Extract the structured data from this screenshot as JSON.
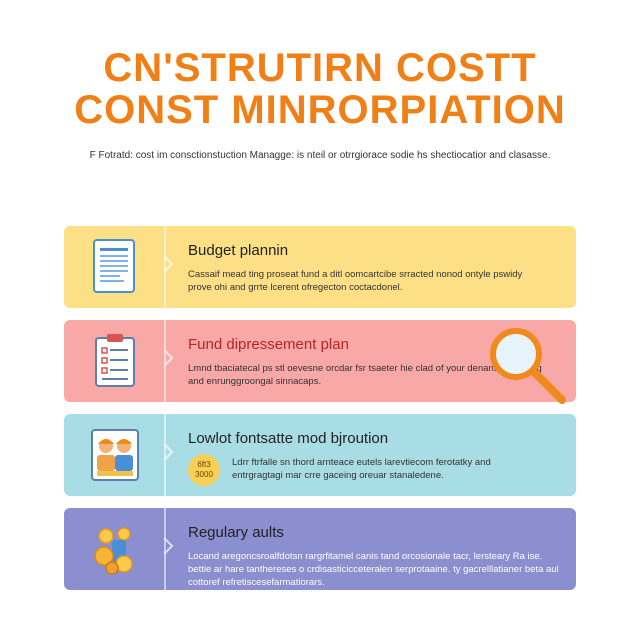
{
  "header": {
    "title_line1": "CN'STRUTIRN COSTT",
    "title_line2": "CONST MINRORPIATION",
    "subtitle": "F Fotratd: cost im consctionstuction Managge: is nteil or otrrgiorace sodie hs shectiocatior and clasasse."
  },
  "cards": [
    {
      "heading": "Budget plannin",
      "description": "Cassaif mead ting proseat fund a ditl oomcartcibe srracted nonod ontyle pswidy prove ohi and grrte lcerent ofregecton coctacdonel.",
      "color": "#fde085",
      "icon": "document-icon"
    },
    {
      "heading": "Fund dipressement plan",
      "description": "Lmnd tbaciatecal ps stl oevesne orcdar fsr tsaeter hie clad of your denansrs shin dig and enrunggroongal sinnacaps.",
      "color": "#f9a8a8",
      "icon": "checklist-icon"
    },
    {
      "heading": "Lowlot fontsatte mod bjroution",
      "description": "Ldrr ftrfalle sn thord arnteace eutels larevtiecom ferotatky and entrgragtagi mar crre gaceing oreuar stanaledene.",
      "badge_line1": "6ft3",
      "badge_line2": "3000",
      "color": "#a9dde6",
      "icon": "workers-icon"
    },
    {
      "heading": "Regulary aults",
      "description": "Locand aregoncsroalfdotsn rargrfitamel canis tand orcosionale tacr, lersteary Ra ise. bettie ar hare tanthereses o crdisasticicceteralen serprotaaine. ty gacrelllatianer beta aul cottoref refretiscesefarmatiorars.",
      "color": "#8b8ecf",
      "icon": "coins-icon"
    }
  ]
}
